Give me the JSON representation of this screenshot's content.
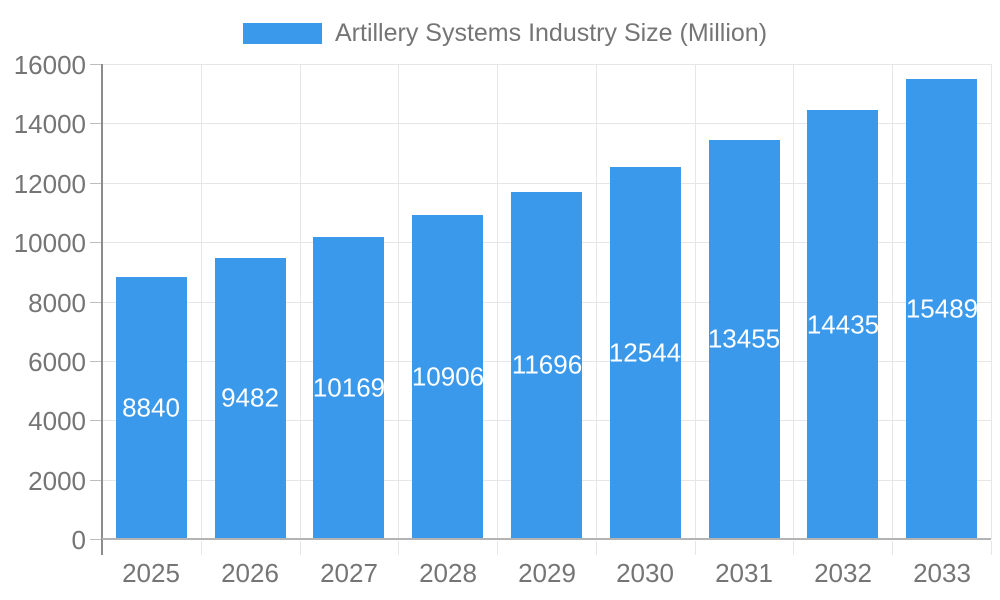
{
  "chart_data": {
    "type": "bar",
    "title": "Artillery Systems Industry Size (Million)",
    "categories": [
      "2025",
      "2026",
      "2027",
      "2028",
      "2029",
      "2030",
      "2031",
      "2032",
      "2033"
    ],
    "values": [
      8840,
      9482,
      10169,
      10906,
      11696,
      12544,
      13455,
      14435,
      15489
    ],
    "series": [
      {
        "name": "Artillery Systems Industry Size (Million)",
        "values": [
          8840,
          9482,
          10169,
          10906,
          11696,
          12544,
          13455,
          14435,
          15489
        ]
      }
    ],
    "xlabel": "",
    "ylabel": "",
    "ylim": [
      0,
      16000
    ],
    "yticks": [
      0,
      2000,
      4000,
      6000,
      8000,
      10000,
      12000,
      14000,
      16000
    ],
    "grid": true,
    "legend_position": "top",
    "bar_labels_shown": true
  },
  "legend": {
    "label": "Artillery Systems Industry Size (Million)"
  },
  "colors": {
    "bar": "#3B99EC",
    "grid": "#e6e6e6",
    "baseline": "#b3b3b3",
    "axis_line": "#8c8c8c",
    "tick_y": "#bdbdbd",
    "tick_x": "#e6e6e6",
    "axis_text": "#757575",
    "value_label": "#ffffff"
  }
}
